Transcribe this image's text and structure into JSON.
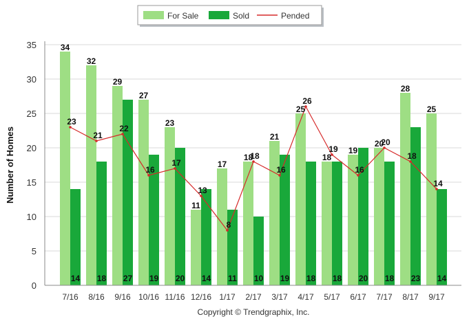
{
  "chart_data": {
    "type": "bar",
    "categories": [
      "7/16",
      "8/16",
      "9/16",
      "10/16",
      "11/16",
      "12/16",
      "1/17",
      "2/17",
      "3/17",
      "4/17",
      "5/17",
      "6/17",
      "7/17",
      "8/17",
      "9/17"
    ],
    "series": [
      {
        "name": "For Sale",
        "type": "bar",
        "color": "#9ede84",
        "values": [
          34,
          32,
          29,
          27,
          23,
          11,
          17,
          18,
          21,
          25,
          18,
          19,
          20,
          28,
          25
        ]
      },
      {
        "name": "Sold",
        "type": "bar",
        "color": "#19a83a",
        "values": [
          14,
          18,
          27,
          19,
          20,
          14,
          11,
          10,
          19,
          18,
          18,
          20,
          18,
          23,
          14
        ]
      },
      {
        "name": "Pended",
        "type": "line",
        "color": "#d62a2a",
        "values": [
          23,
          21,
          22,
          16,
          17,
          13,
          8,
          18,
          16,
          26,
          19,
          16,
          20,
          18,
          14
        ]
      }
    ],
    "ylabel": "Number of Homes",
    "ylim": [
      0,
      35
    ],
    "yticks": [
      0,
      5,
      10,
      15,
      20,
      25,
      30,
      35
    ],
    "grid": true,
    "legend": "top-center"
  },
  "footer": {
    "copyright": "Copyright © Trendgraphix, Inc."
  }
}
